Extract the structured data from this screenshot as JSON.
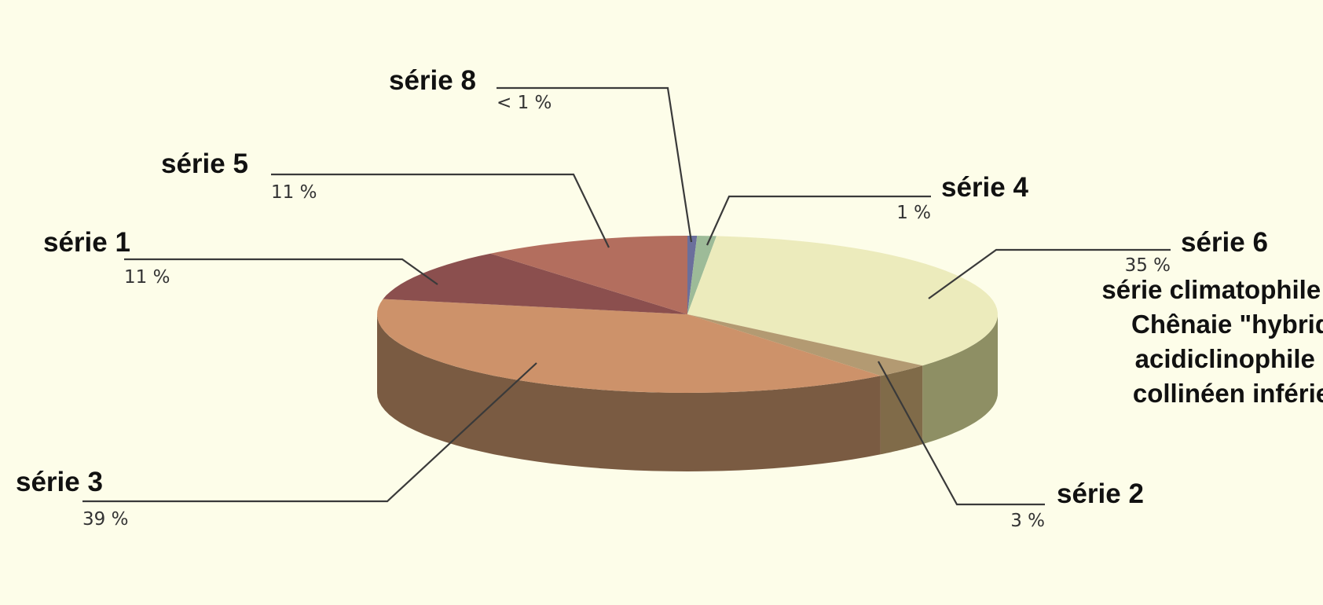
{
  "chart_data": {
    "type": "pie",
    "style": "3d",
    "legend": "none",
    "slices": [
      {
        "key": "s8",
        "name": "série 8",
        "label": "< 1 %",
        "value": 0.5,
        "color": "#6b6f9c",
        "side": "#4b4e70",
        "desc": []
      },
      {
        "key": "s4",
        "name": "série 4",
        "label": "1 %",
        "value": 1,
        "color": "#9dbb98",
        "side": "#6e8a6a",
        "desc": []
      },
      {
        "key": "s6",
        "name": "série 6",
        "label": "35 %",
        "value": 35,
        "color": "#ecebbc",
        "side": "#8e8f64",
        "desc": [
          "série climatophile de la",
          "Chênaie \"hybride\"",
          "acidiclinophile du",
          "collinéen inférieur"
        ]
      },
      {
        "key": "s2",
        "name": "série 2",
        "label": "3 %",
        "value": 3,
        "color": "#b39a72",
        "side": "#806b49",
        "desc": []
      },
      {
        "key": "s3",
        "name": "série 3",
        "label": "39 %",
        "value": 39,
        "color": "#cd926a",
        "side": "#7a5b42",
        "desc": []
      },
      {
        "key": "s1",
        "name": "série 1",
        "label": "11 %",
        "value": 11,
        "color": "#8b4f4e",
        "side": "#5f3736",
        "desc": []
      },
      {
        "key": "s5",
        "name": "série 5",
        "label": "11 %",
        "value": 11,
        "color": "#b36e5e",
        "side": "#7a4a40",
        "desc": []
      }
    ]
  }
}
